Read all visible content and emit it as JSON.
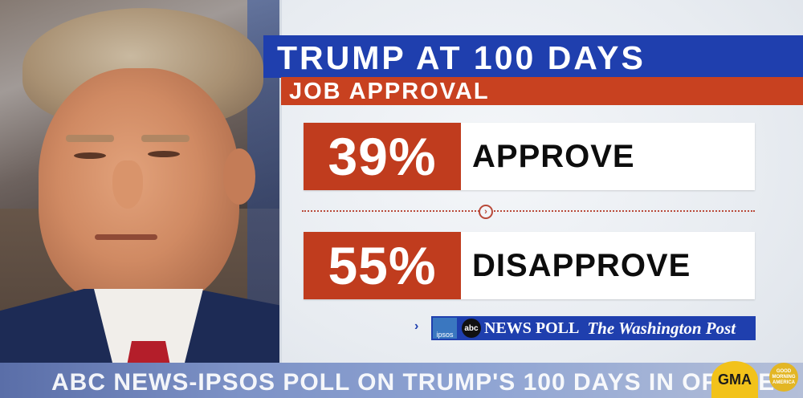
{
  "graphic": {
    "title": "TRUMP AT 100 DAYS",
    "subtitle": "JOB APPROVAL",
    "stats": [
      {
        "percent": "39%",
        "label": "APPROVE",
        "value": 39
      },
      {
        "percent": "55%",
        "label": "DISAPPROVE",
        "value": 55
      }
    ],
    "source": {
      "ipsos": "ipsos",
      "abc": "abc",
      "news_poll": "NEWS POLL",
      "wapo": "The Washington Post"
    }
  },
  "ticker": {
    "headline": "ABC NEWS-IPSOS POLL ON TRUMP'S 100 DAYS IN OFFICE",
    "gma": "GMA",
    "logo": "GOOD MORNING AMERICA"
  },
  "colors": {
    "title_blue": "#1f3fae",
    "accent_red": "#c03c1e"
  }
}
